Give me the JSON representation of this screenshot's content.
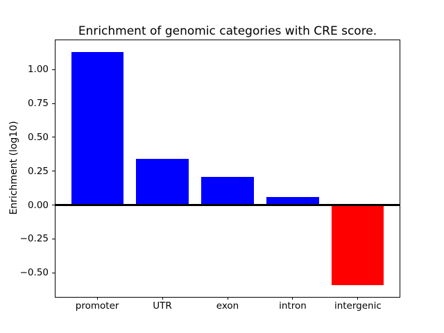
{
  "chart_data": {
    "type": "bar",
    "title": "Enrichment of genomic categories with CRE score.",
    "xlabel": "",
    "ylabel": "Enrichment (log10)",
    "categories": [
      "promoter",
      "UTR",
      "exon",
      "intron",
      "intergenic"
    ],
    "values": [
      1.13,
      0.34,
      0.21,
      0.06,
      -0.59
    ],
    "positive_color": "#0000ff",
    "negative_color": "#ff0000",
    "axis_color": "#000000",
    "background_color": "#ffffff",
    "yticks": [
      1.0,
      0.75,
      0.5,
      0.25,
      0.0,
      -0.25,
      -0.5
    ],
    "ytick_labels": [
      "1.00",
      "0.75",
      "0.50",
      "0.25",
      "0.00",
      "−0.25",
      "−0.50"
    ],
    "ylim": [
      -0.678,
      1.217
    ],
    "xlim": [
      -0.64,
      4.64
    ],
    "bar_width": 0.8,
    "zero_line": true,
    "grid": false,
    "legend": null
  }
}
